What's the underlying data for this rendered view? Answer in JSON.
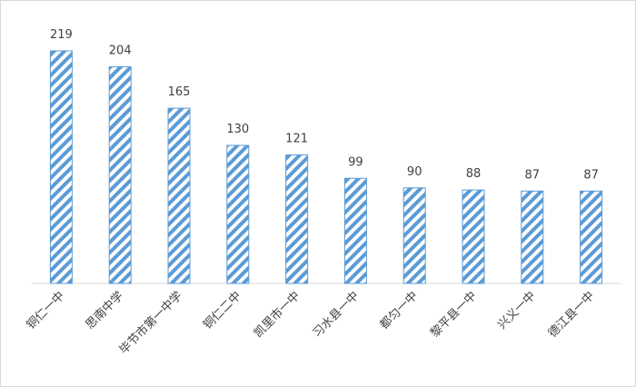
{
  "chart_data": {
    "type": "bar",
    "categories": [
      "铜仁一中",
      "思南中学",
      "毕节市第一中学",
      "铜仁二中",
      "凯里市一中",
      "习水县一中",
      "都匀一中",
      "黎平县一中",
      "兴义一中",
      "德江县一中"
    ],
    "values": [
      219,
      204,
      165,
      130,
      121,
      99,
      90,
      88,
      87,
      87
    ],
    "color": "#5b9bd5"
  }
}
